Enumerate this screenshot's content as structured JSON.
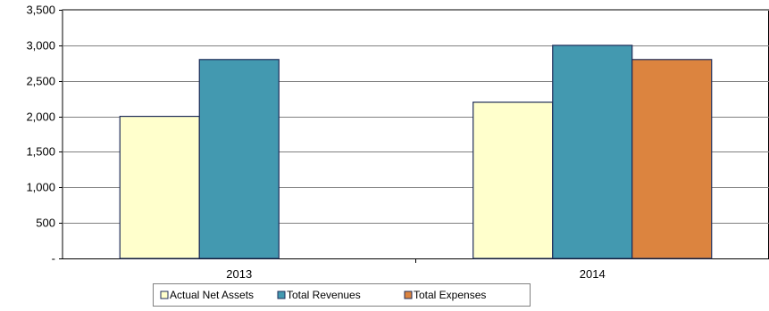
{
  "chart_data": {
    "type": "bar",
    "title": "",
    "xlabel": "",
    "ylabel": "",
    "categories": [
      "2013",
      "2014"
    ],
    "series": [
      {
        "name": "Actual Net Assets",
        "values": [
          2000,
          2200
        ],
        "color": "#ffffcc"
      },
      {
        "name": "Total Revenues",
        "values": [
          2800,
          3000
        ],
        "color": "#4399b0"
      },
      {
        "name": "Total Expenses",
        "values": [
          null,
          2800
        ],
        "color": "#dc843f"
      }
    ],
    "ylim": [
      0,
      3500
    ],
    "yticks": [
      0,
      500,
      1000,
      1500,
      2000,
      2500,
      3000,
      3500
    ],
    "ytick_labels": [
      "-",
      "500",
      "1,000",
      "1,500",
      "2,000",
      "2,500",
      "3,000",
      "3,500"
    ],
    "grid": true,
    "legend_position": "bottom"
  }
}
